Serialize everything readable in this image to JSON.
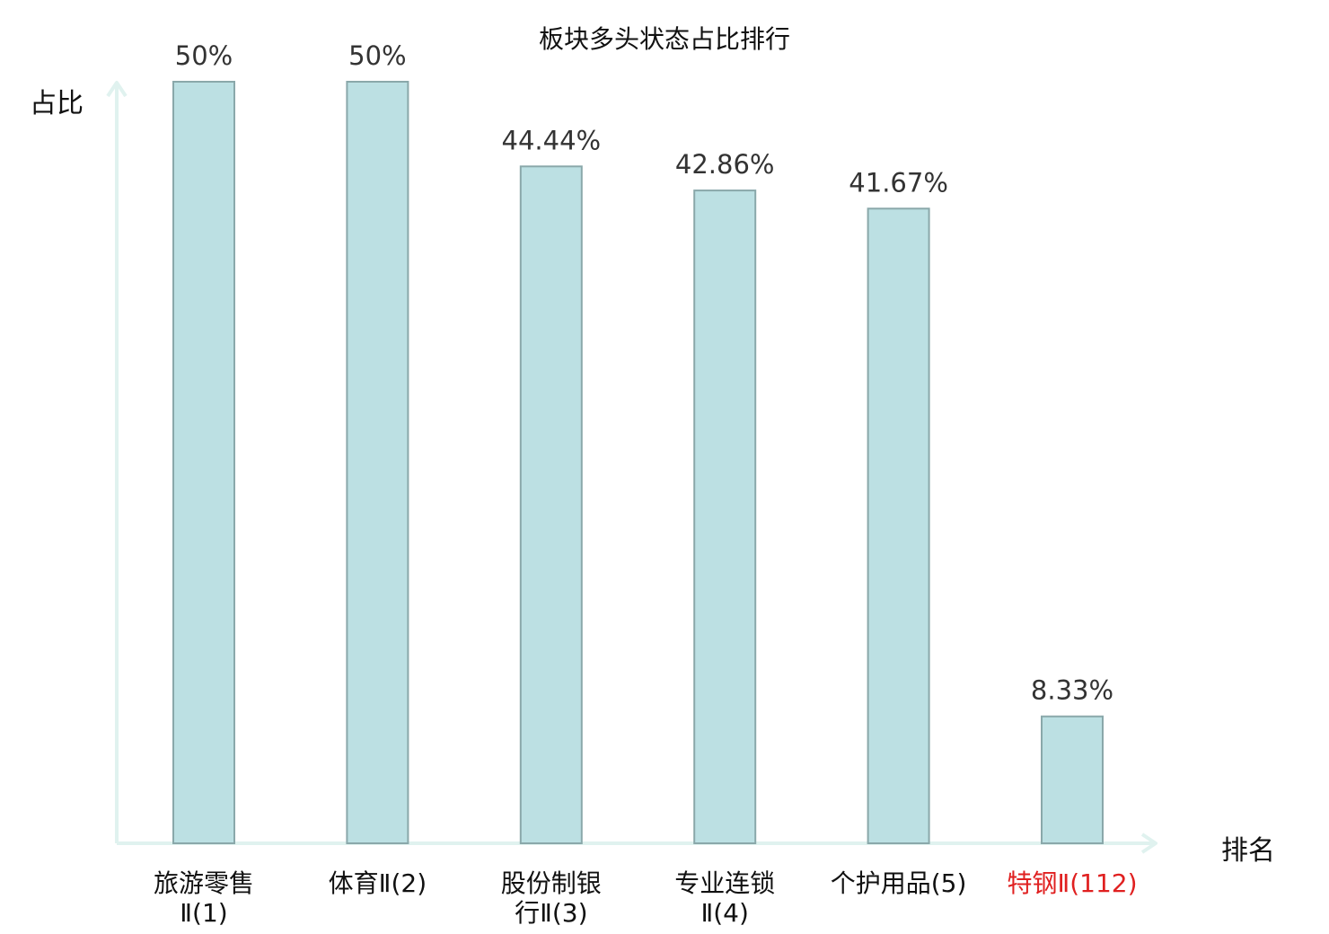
{
  "chart_data": {
    "type": "bar",
    "title": "板块多头状态占比排行",
    "ylabel": "占比",
    "xlabel": "排名",
    "categories": [
      [
        "旅游零售",
        "Ⅱ(1)"
      ],
      [
        "体育Ⅱ(2)"
      ],
      [
        "股份制银",
        "行Ⅱ(3)"
      ],
      [
        "专业连锁",
        "Ⅱ(4)"
      ],
      [
        "个护用品(5)"
      ],
      [
        "特钢Ⅱ(112)"
      ]
    ],
    "values": [
      50,
      50,
      44.44,
      42.86,
      41.67,
      8.33
    ],
    "value_labels": [
      "50%",
      "50%",
      "44.44%",
      "42.86%",
      "41.67%",
      "8.33%"
    ],
    "highlight_index": 5,
    "ylim": [
      0,
      50
    ],
    "grid": false,
    "colors": {
      "bar_fill": "#bce0e3",
      "bar_stroke": "#8aa8aa",
      "axis": "#e0f2ef",
      "label": "#111111",
      "highlight": "#e02020"
    }
  }
}
